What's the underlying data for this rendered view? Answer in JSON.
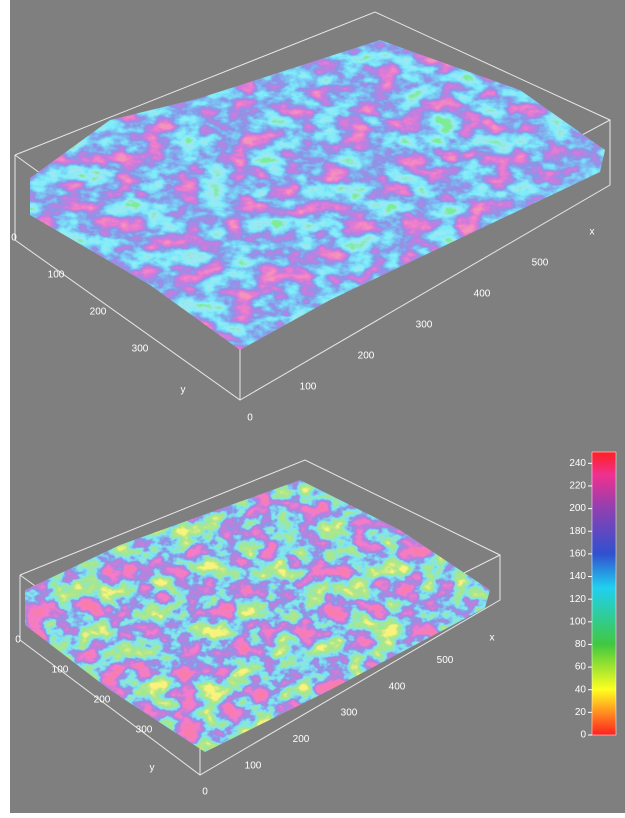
{
  "chart_data": [
    {
      "type": "surface",
      "xlabel": "x",
      "ylabel": "y",
      "xlim": [
        0,
        600
      ],
      "xticks": [
        0,
        100,
        200,
        300,
        400,
        500
      ],
      "ylim": [
        0,
        400
      ],
      "yticks": [
        0,
        100,
        200,
        300
      ]
    },
    {
      "type": "surface",
      "xlabel": "x",
      "ylabel": "y",
      "xlim": [
        0,
        600
      ],
      "xticks": [
        0,
        100,
        200,
        300,
        400,
        500
      ],
      "ylim": [
        0,
        400
      ],
      "yticks": [
        0,
        100,
        200,
        300
      ],
      "colorbar_lim": [
        0,
        250
      ],
      "colorbar_ticks": [
        0,
        20,
        40,
        60,
        80,
        100,
        120,
        140,
        160,
        180,
        200,
        220,
        240
      ]
    }
  ]
}
